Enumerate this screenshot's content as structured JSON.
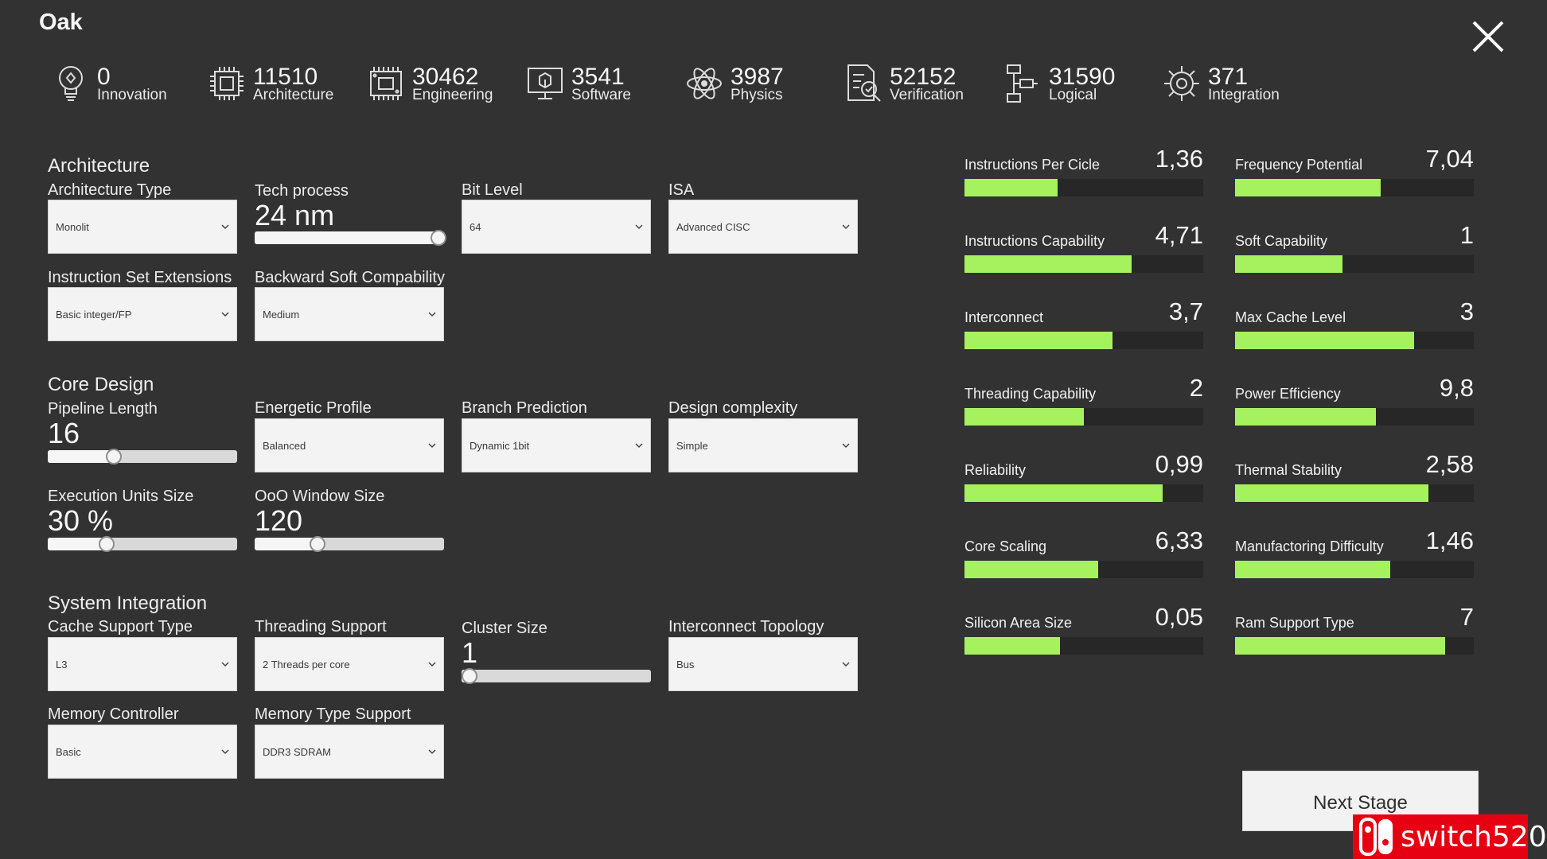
{
  "app": {
    "title": "Oak"
  },
  "resources": [
    {
      "icon": "lightbulb-icon",
      "value": "0",
      "label": "Innovation"
    },
    {
      "icon": "chip-icon",
      "value": "11510",
      "label": "Architecture"
    },
    {
      "icon": "circuit-board-icon",
      "value": "30462",
      "label": "Engineering"
    },
    {
      "icon": "monitor-code-icon",
      "value": "3541",
      "label": "Software"
    },
    {
      "icon": "atom-icon",
      "value": "3987",
      "label": "Physics"
    },
    {
      "icon": "document-check-icon",
      "value": "52152",
      "label": "Verification"
    },
    {
      "icon": "flowchart-icon",
      "value": "31590",
      "label": "Logical"
    },
    {
      "icon": "gear-icon",
      "value": "371",
      "label": "Integration"
    }
  ],
  "architecture": {
    "title": "Architecture",
    "architecture_type": {
      "label": "Architecture Type",
      "value": "Monolit"
    },
    "tech_process": {
      "label": "Tech process",
      "value": "24 nm",
      "level": 0.97
    },
    "bit_level": {
      "label": "Bit Level",
      "value": "64"
    },
    "isa": {
      "label": "ISA",
      "value": "Advanced CISC"
    },
    "instruction_set_extensions": {
      "label": "Instruction Set Extensions",
      "value": "Basic integer/FP"
    },
    "backward_soft_compatibility": {
      "label": "Backward Soft Compability",
      "value": "Medium"
    }
  },
  "core_design": {
    "title": "Core Design",
    "pipeline_length": {
      "label": "Pipeline Length",
      "value": "16",
      "level": 0.35
    },
    "energetic_profile": {
      "label": "Energetic Profile",
      "value": "Balanced"
    },
    "branch_prediction": {
      "label": "Branch Prediction",
      "value": "Dynamic 1bit"
    },
    "design_complexity": {
      "label": "Design complexity",
      "value": "Simple"
    },
    "execution_units_size": {
      "label": "Execution Units Size",
      "value": "30 %",
      "level": 0.31
    },
    "ooo_window_size": {
      "label": "OoO Window Size",
      "value": "120",
      "level": 0.33
    }
  },
  "system_integration": {
    "title": "System Integration",
    "cache_support_type": {
      "label": "Cache Support Type",
      "value": "L3"
    },
    "threading_support": {
      "label": "Threading Support",
      "value": "2 Threads per core"
    },
    "cluster_size": {
      "label": "Cluster Size",
      "value": "1",
      "level": 0.04
    },
    "interconnect_topology": {
      "label": "Interconnect Topology",
      "value": "Bus"
    },
    "memory_controller": {
      "label": "Memory Controller",
      "value": "Basic"
    },
    "memory_type_support": {
      "label": "Memory Type Support",
      "value": "DDR3 SDRAM"
    }
  },
  "stats": [
    {
      "name": "Instructions Per Cicle",
      "value": "1,36",
      "level": 0.39
    },
    {
      "name": "Frequency Potential",
      "value": "7,04",
      "level": 0.61
    },
    {
      "name": "Instructions Capability",
      "value": "4,71",
      "level": 0.7
    },
    {
      "name": "Soft Capability",
      "value": "1",
      "level": 0.45
    },
    {
      "name": "Interconnect",
      "value": "3,7",
      "level": 0.62
    },
    {
      "name": "Max Cache Level",
      "value": "3",
      "level": 0.75
    },
    {
      "name": "Threading Capability",
      "value": "2",
      "level": 0.5
    },
    {
      "name": "Power Efficiency",
      "value": "9,8",
      "level": 0.59
    },
    {
      "name": "Reliability",
      "value": "0,99",
      "level": 0.83
    },
    {
      "name": "Thermal Stability",
      "value": "2,58",
      "level": 0.81
    },
    {
      "name": "Core Scaling",
      "value": "6,33",
      "level": 0.56
    },
    {
      "name": "Manufactoring Difficulty",
      "value": "1,46",
      "level": 0.65
    },
    {
      "name": "Silicon Area Size",
      "value": "0,05",
      "level": 0.4
    },
    {
      "name": "Ram Support Type",
      "value": "7",
      "level": 0.88
    }
  ],
  "actions": {
    "next_stage": "Next Stage"
  },
  "watermark": {
    "text": "switch520"
  },
  "colors": {
    "background": "#323232",
    "bar_fill": "#a6f25e",
    "bar_track": "#272727",
    "watermark": "#e60012"
  }
}
